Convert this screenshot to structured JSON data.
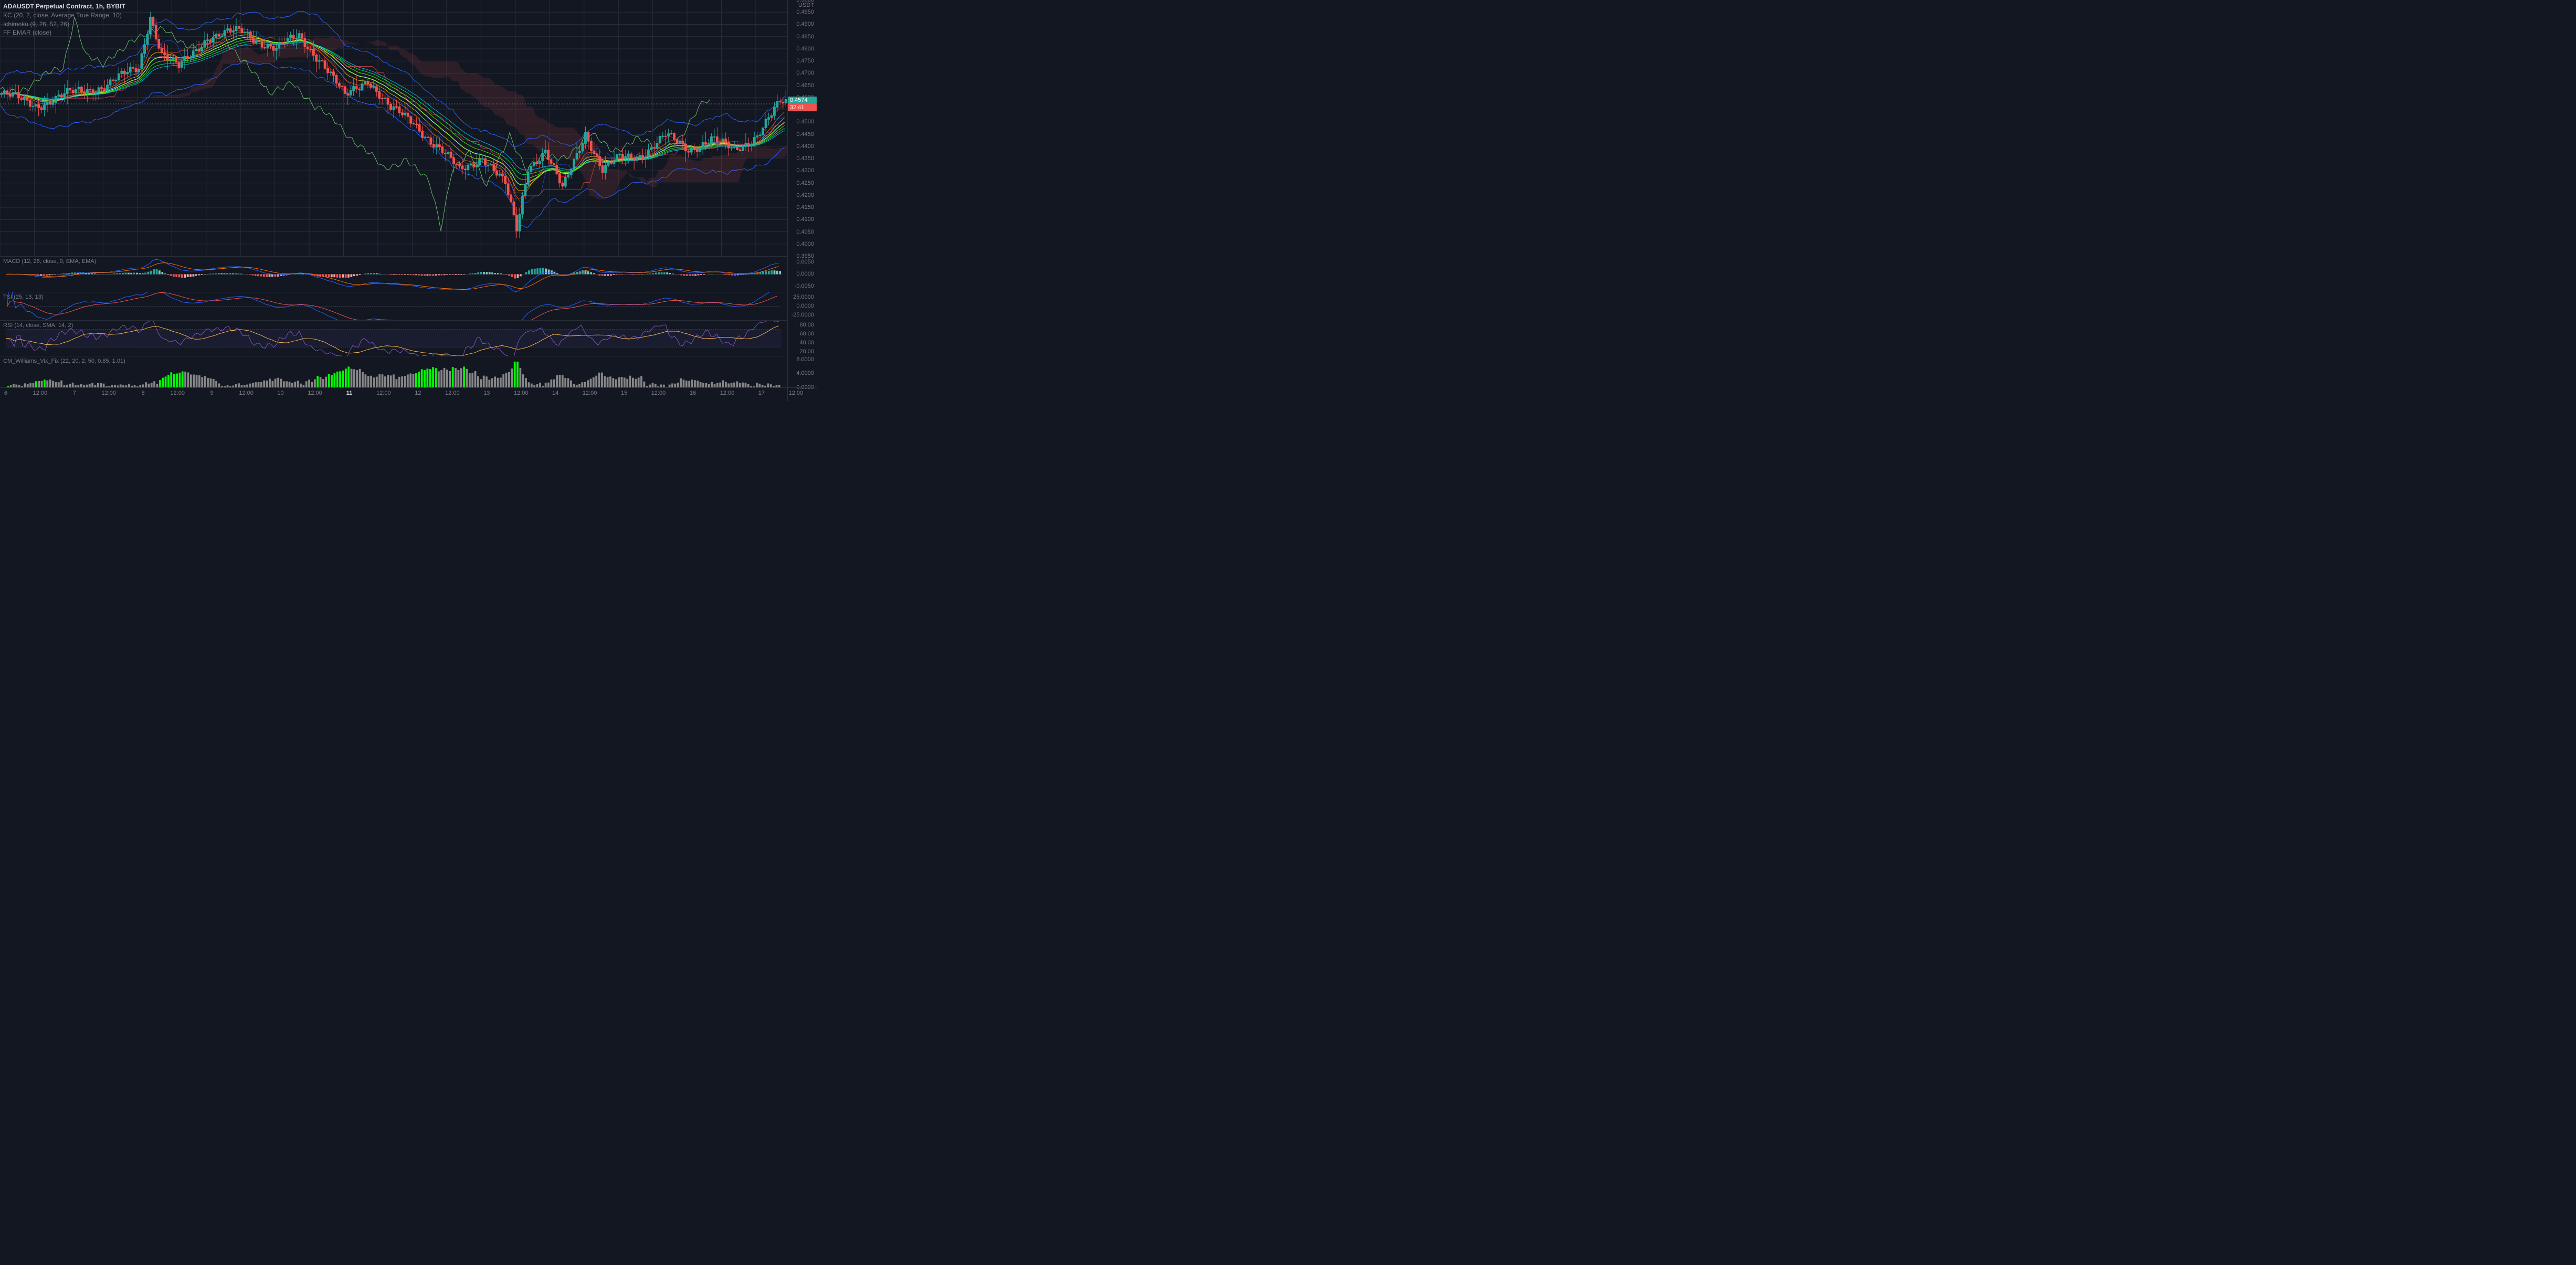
{
  "symbol": "ADAUSDT Perpetual Contract",
  "interval": "1h",
  "exchange": "BYBIT",
  "indicators": {
    "kc": "KC (20, 2, close, Average True Range, 10)",
    "ichimoku": "Ichimoku (9, 26, 52, 26)",
    "ffemar": "FF EMAR (close)"
  },
  "main_chart": {
    "ylim": [
      0.395,
      0.5
    ],
    "ytick_step": 0.005,
    "axis_title": "USDT",
    "current_price": 0.4574,
    "countdown": "32:41",
    "price_tag_bg": "#26a69a",
    "countdown_bg": "#ef5350",
    "colors": {
      "bg": "#131722",
      "grid": "#2a2e39",
      "kc_upper": "#2962ff",
      "kc_lower": "#2962ff",
      "kc_mid": "#26c6da",
      "conversion": "#2962ff",
      "base": "#ef5350",
      "lag": "#66bb6a",
      "cloud_up_a": "rgba(76,175,80,0.2)",
      "cloud_dn_a": "rgba(239,83,80,0.2)",
      "emar": [
        "#ff0000",
        "#ff6600",
        "#ffcc00",
        "#ccff00",
        "#66ff00",
        "#00ff66",
        "#00ccff"
      ]
    },
    "candles_n": 275,
    "candles_ohlc": "generated"
  },
  "macd": {
    "label": "MACD (12, 26, close, 9, EMA, EMA)",
    "ylim": [
      -0.0075,
      0.0075
    ],
    "yticks": [
      -0.005,
      0.0,
      0.005
    ],
    "line_color": "#2962ff",
    "signal_color": "#ff6d00"
  },
  "tsi": {
    "label": "TSI (25, 13, 13)",
    "ylim": [
      -40,
      40
    ],
    "yticks": [
      -25.0,
      0.0,
      25.0
    ],
    "line_color": "#2962ff",
    "signal_color": "#ef5350"
  },
  "rsi": {
    "label": "RSI (14, close, SMA, 14, 2)",
    "ylim": [
      10,
      90
    ],
    "yticks": [
      20.0,
      40.0,
      60.0,
      80.0
    ],
    "bands": [
      30,
      70
    ],
    "band_fill": "rgba(120,100,200,0.08)",
    "line_color": "#7e57c2",
    "sma_color": "#ffb74d"
  },
  "vix": {
    "label": "CM_Williams_Vix_Fix (22, 20, 2, 50, 0.85, 1.01)",
    "ylim": [
      0,
      9
    ],
    "yticks": [
      0.0,
      4.0,
      8.0
    ]
  },
  "time_axis": {
    "labels": [
      "6",
      "12:00",
      "7",
      "12:00",
      "8",
      "12:00",
      "9",
      "12:00",
      "10",
      "12:00",
      "11",
      "12:00",
      "12",
      "12:00",
      "13",
      "12:00",
      "14",
      "12:00",
      "15",
      "12:00",
      "16",
      "12:00",
      "17",
      "12:00"
    ],
    "bold_idx": 10
  }
}
